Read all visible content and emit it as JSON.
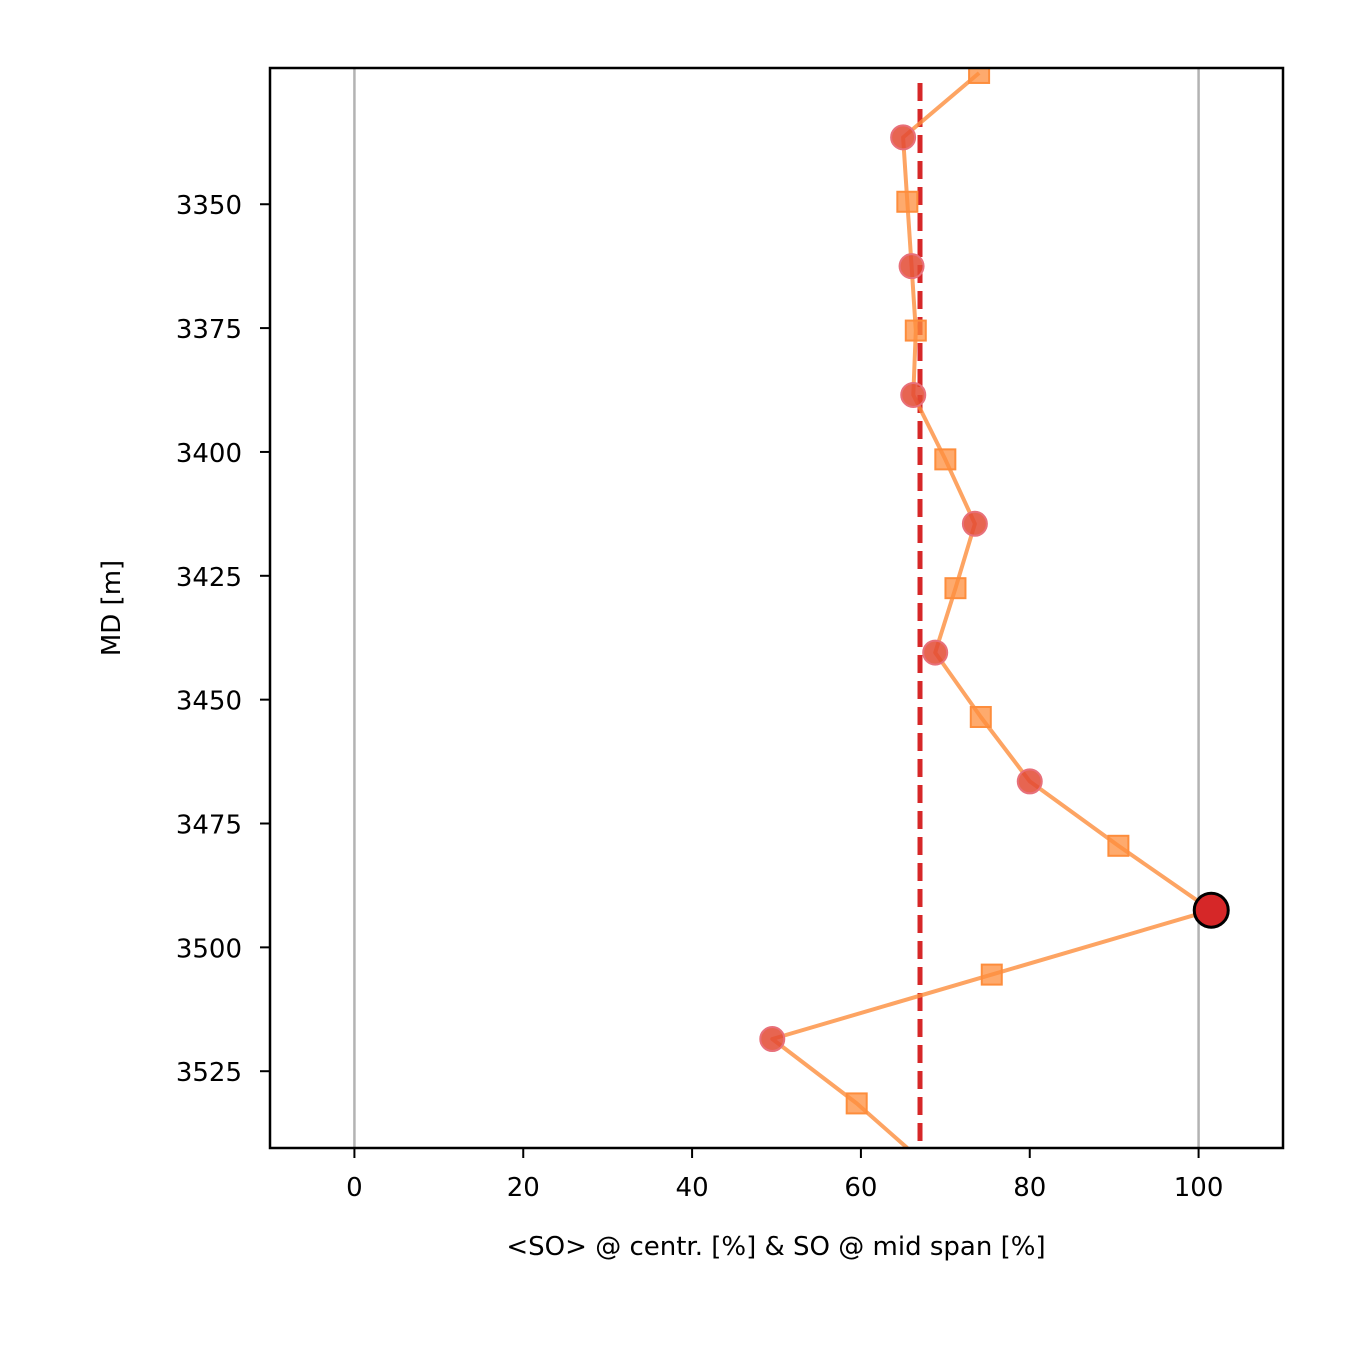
{
  "chart_data": {
    "type": "line",
    "title": "",
    "xlabel": "<SO> @ centr. [%]  &  SO @ mid span [%]",
    "ylabel": "MD [m]",
    "xlim": [
      -10,
      110
    ],
    "ylim": [
      3540.5,
      3322.5
    ],
    "y_inverted": true,
    "xticks": [
      0,
      20,
      40,
      60,
      80,
      100
    ],
    "yticks": [
      3350,
      3375,
      3400,
      3425,
      3450,
      3475,
      3500,
      3525
    ],
    "grid": "vertical lines at x=0 and x=100",
    "reference_lines": [
      {
        "x": 0,
        "color": "#b3b3b3",
        "style": "solid"
      },
      {
        "x": 100,
        "color": "#b3b3b3",
        "style": "solid"
      },
      {
        "x": 67,
        "color": "#d62728",
        "style": "dashed"
      }
    ],
    "series": [
      {
        "marker": "line",
        "color": "#fd8d3c",
        "points": [
          {
            "x": 74,
            "y": 3323.5
          },
          {
            "x": 65,
            "y": 3336.5
          },
          {
            "x": 65.5,
            "y": 3349.5
          },
          {
            "x": 66,
            "y": 3362.5
          },
          {
            "x": 66.5,
            "y": 3375.5
          },
          {
            "x": 66.2,
            "y": 3388.5
          },
          {
            "x": 70,
            "y": 3401.5
          },
          {
            "x": 73.5,
            "y": 3414.5
          },
          {
            "x": 71.2,
            "y": 3427.5
          },
          {
            "x": 68.8,
            "y": 3440.5
          },
          {
            "x": 74.2,
            "y": 3453.5
          },
          {
            "x": 80,
            "y": 3466.5
          },
          {
            "x": 90.5,
            "y": 3479.5
          },
          {
            "x": 101.5,
            "y": 3492.5
          },
          {
            "x": 75.5,
            "y": 3505.5
          },
          {
            "x": 49.5,
            "y": 3518.5
          },
          {
            "x": 59.5,
            "y": 3531.5
          },
          {
            "x": 65.5,
            "y": 3540.5
          }
        ]
      },
      {
        "marker": "square",
        "color": "#fd8d3c",
        "points": [
          {
            "x": 74,
            "y": 3323.5
          },
          {
            "x": 65.5,
            "y": 3349.5
          },
          {
            "x": 66.5,
            "y": 3375.5
          },
          {
            "x": 70,
            "y": 3401.5
          },
          {
            "x": 71.2,
            "y": 3427.5
          },
          {
            "x": 74.2,
            "y": 3453.5
          },
          {
            "x": 90.5,
            "y": 3479.5
          },
          {
            "x": 75.5,
            "y": 3505.5
          },
          {
            "x": 59.5,
            "y": 3531.5
          }
        ]
      },
      {
        "marker": "circle",
        "color": "#e34a33",
        "points": [
          {
            "x": 65,
            "y": 3336.5
          },
          {
            "x": 66,
            "y": 3362.5
          },
          {
            "x": 66.2,
            "y": 3388.5
          },
          {
            "x": 73.5,
            "y": 3414.5
          },
          {
            "x": 68.8,
            "y": 3440.5
          },
          {
            "x": 80,
            "y": 3466.5
          },
          {
            "x": 49.5,
            "y": 3518.5
          }
        ]
      },
      {
        "marker": "highlight-circle",
        "color": "#d62728",
        "points": [
          {
            "x": 101.5,
            "y": 3492.5
          }
        ]
      }
    ]
  },
  "colors": {
    "line": "#fd8d3c",
    "square_face": "#fd8d3c",
    "circle_face": "#e34a33",
    "highlight_face": "#d62728",
    "dashed_reference": "#d62728",
    "grid": "#b3b3b3"
  }
}
